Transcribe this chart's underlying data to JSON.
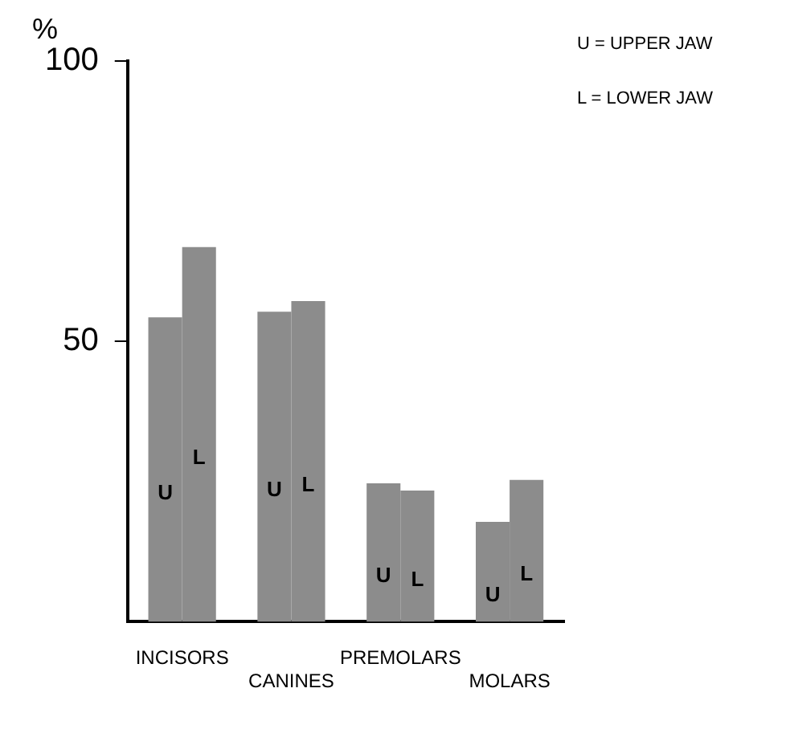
{
  "chart_data": {
    "type": "bar",
    "ylabel": "%",
    "categories": [
      "INCISORS",
      "CANINES",
      "PREMOLARS",
      "MOLARS"
    ],
    "series": [
      {
        "name": "U",
        "color": "#8c8c8c",
        "values": [
          54.3,
          55.3,
          24.7,
          17.8
        ]
      },
      {
        "name": "L",
        "color": "#8c8c8c",
        "values": [
          66.8,
          57.2,
          23.4,
          25.3
        ]
      }
    ],
    "ylim": [
      0,
      100
    ],
    "yticks": [
      50,
      100
    ],
    "annotations": [
      "U = UPPER JAW",
      "L = LOWER JAW"
    ]
  }
}
